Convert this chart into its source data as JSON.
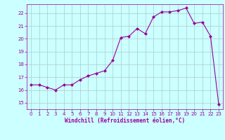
{
  "x": [
    0,
    1,
    2,
    3,
    4,
    5,
    6,
    7,
    8,
    9,
    10,
    11,
    12,
    13,
    14,
    15,
    16,
    17,
    18,
    19,
    20,
    21,
    22,
    23
  ],
  "y": [
    16.4,
    16.4,
    16.2,
    16.0,
    16.4,
    16.4,
    16.8,
    17.1,
    17.3,
    17.5,
    18.3,
    20.1,
    20.2,
    20.8,
    20.4,
    21.7,
    22.1,
    22.1,
    22.2,
    22.4,
    21.2,
    21.3,
    20.2,
    14.9
  ],
  "line_color": "#990099",
  "marker": "D",
  "marker_size": 2,
  "bg_color": "#ccffff",
  "grid_color": "#aacccc",
  "xlabel": "Windchill (Refroidissement éolien,°C)",
  "xlabel_color": "#990099",
  "tick_color": "#990099",
  "ylim": [
    14.5,
    22.7
  ],
  "xlim": [
    -0.5,
    23.5
  ],
  "yticks": [
    15,
    16,
    17,
    18,
    19,
    20,
    21,
    22
  ],
  "xticks": [
    0,
    1,
    2,
    3,
    4,
    5,
    6,
    7,
    8,
    9,
    10,
    11,
    12,
    13,
    14,
    15,
    16,
    17,
    18,
    19,
    20,
    21,
    22,
    23
  ]
}
